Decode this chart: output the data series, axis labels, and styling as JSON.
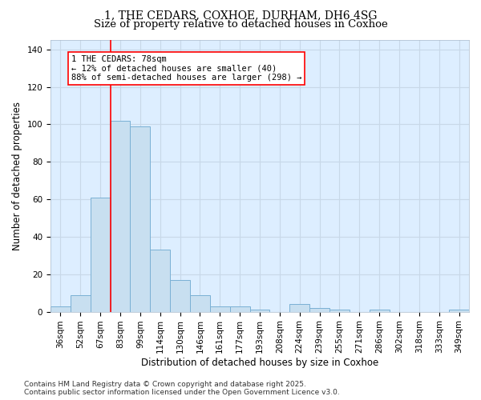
{
  "title": "1, THE CEDARS, COXHOE, DURHAM, DH6 4SG",
  "subtitle": "Size of property relative to detached houses in Coxhoe",
  "xlabel": "Distribution of detached houses by size in Coxhoe",
  "ylabel": "Number of detached properties",
  "bar_labels": [
    "36sqm",
    "52sqm",
    "67sqm",
    "83sqm",
    "99sqm",
    "114sqm",
    "130sqm",
    "146sqm",
    "161sqm",
    "177sqm",
    "193sqm",
    "208sqm",
    "224sqm",
    "239sqm",
    "255sqm",
    "271sqm",
    "286sqm",
    "302sqm",
    "318sqm",
    "333sqm",
    "349sqm"
  ],
  "bar_values": [
    3,
    9,
    61,
    102,
    99,
    33,
    17,
    9,
    3,
    3,
    1,
    0,
    4,
    2,
    1,
    0,
    1,
    0,
    0,
    0,
    1
  ],
  "bar_color": "#c8dff0",
  "bar_edge_color": "#7ab0d4",
  "red_line_index": 2.5,
  "annotation_text": "1 THE CEDARS: 78sqm\n← 12% of detached houses are smaller (40)\n88% of semi-detached houses are larger (298) →",
  "annotation_box_color": "white",
  "annotation_box_edge_color": "red",
  "ylim": [
    0,
    145
  ],
  "yticks": [
    0,
    20,
    40,
    60,
    80,
    100,
    120,
    140
  ],
  "grid_color": "#c8d8e8",
  "background_color": "#ddeeff",
  "footer_text": "Contains HM Land Registry data © Crown copyright and database right 2025.\nContains public sector information licensed under the Open Government Licence v3.0.",
  "title_fontsize": 10,
  "subtitle_fontsize": 9.5,
  "axis_label_fontsize": 8.5,
  "tick_fontsize": 7.5,
  "annotation_fontsize": 7.5,
  "footer_fontsize": 6.5
}
